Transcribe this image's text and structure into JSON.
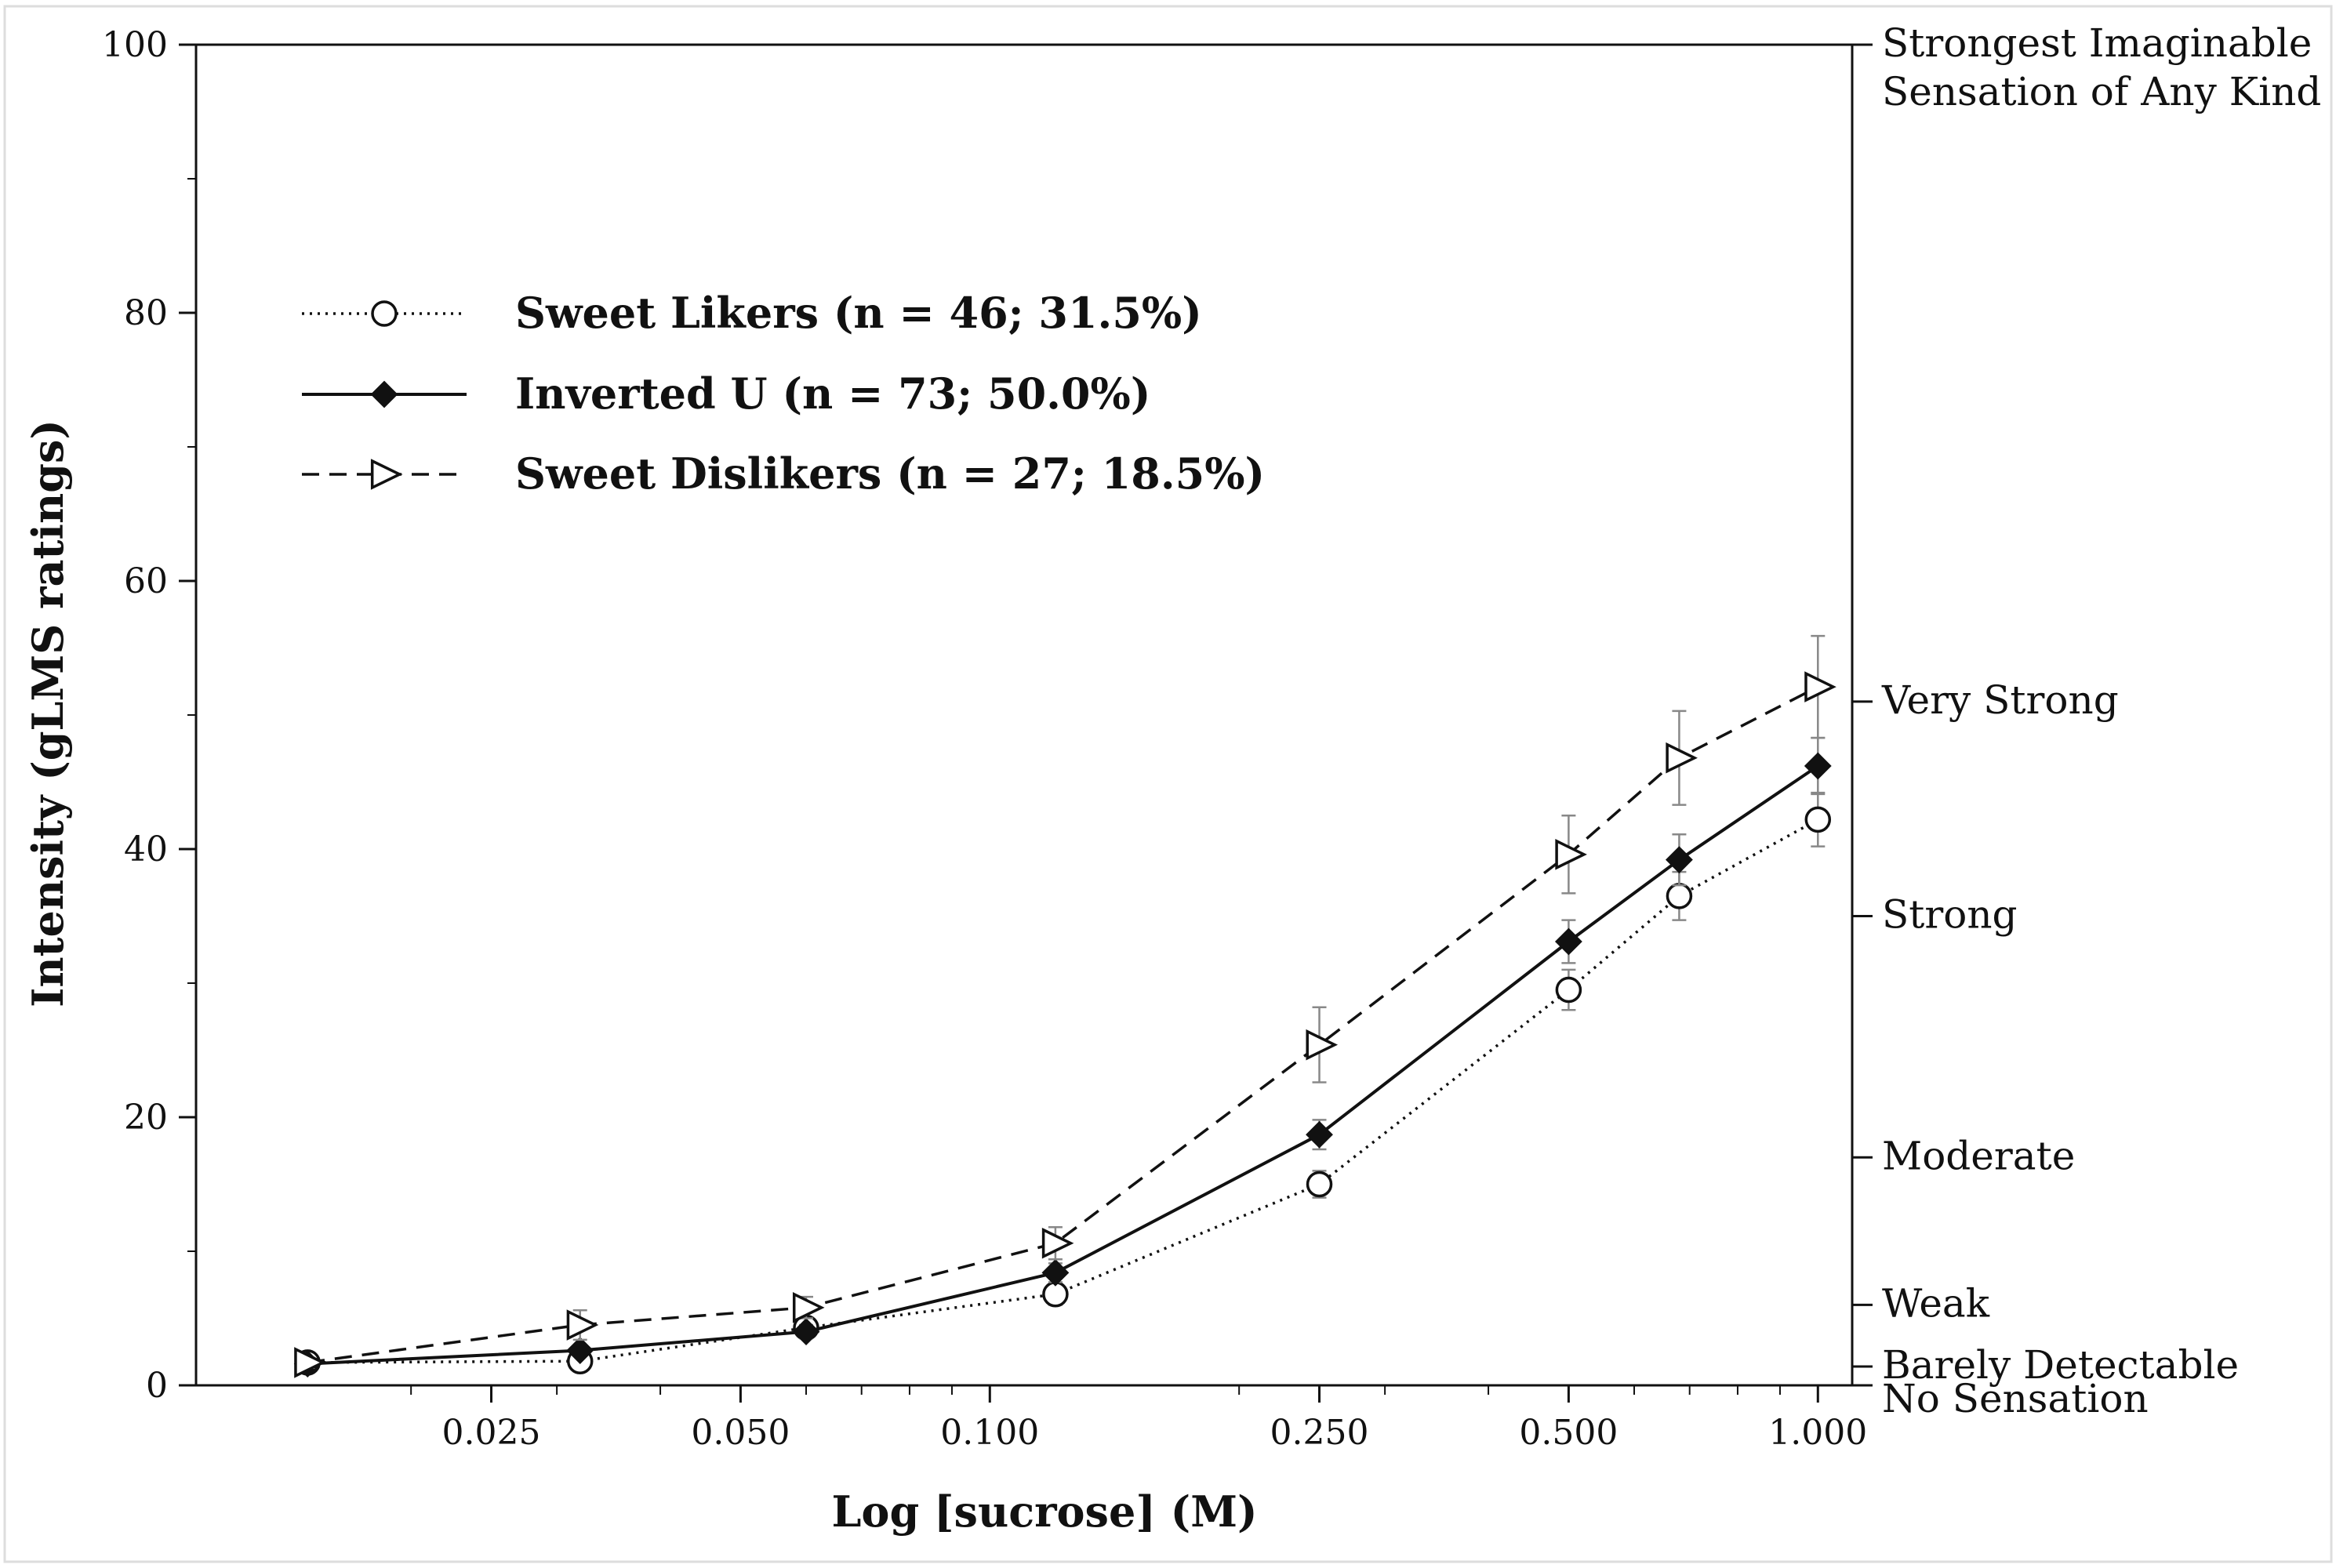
{
  "chart_data": {
    "type": "line",
    "xscale": "log",
    "xlabel": "Log [sucrose] (M)",
    "ylabel": "Intensity (gLMS ratings)",
    "ylim": [
      0,
      100
    ],
    "yticks": [
      0,
      20,
      40,
      60,
      80,
      100
    ],
    "xlim": [
      0.011,
      1.1
    ],
    "xticks": [
      {
        "value": 0.025,
        "label": "0.025"
      },
      {
        "value": 0.05,
        "label": "0.050"
      },
      {
        "value": 0.1,
        "label": "0.100"
      },
      {
        "value": 0.25,
        "label": "0.250"
      },
      {
        "value": 0.5,
        "label": "0.500"
      },
      {
        "value": 1.0,
        "label": "1.000"
      }
    ],
    "x": [
      0.015,
      0.032,
      0.06,
      0.12,
      0.25,
      0.5,
      0.68,
      1.0
    ],
    "series": [
      {
        "name": "Sweet Likers (n = 46; 31.5%)",
        "marker": "circle-open",
        "line": "dotted",
        "values": [
          1.7,
          1.8,
          4.3,
          6.8,
          15.0,
          29.5,
          36.5,
          42.2
        ],
        "errors": [
          0.3,
          0.4,
          0.5,
          0.8,
          1.0,
          1.5,
          1.8,
          2.0
        ]
      },
      {
        "name": "Inverted U (n = 73; 50.0%)",
        "marker": "diamond-filled",
        "line": "solid",
        "values": [
          1.6,
          2.6,
          4.0,
          8.4,
          18.7,
          33.1,
          39.2,
          46.2
        ],
        "errors": [
          0.3,
          0.4,
          0.5,
          0.7,
          1.1,
          1.6,
          1.9,
          2.1
        ]
      },
      {
        "name": "Sweet Dislikers (n = 27; 18.5%)",
        "marker": "triangle-right-open",
        "line": "dashed",
        "values": [
          1.7,
          4.5,
          5.8,
          10.6,
          25.4,
          39.6,
          46.8,
          52.1
        ],
        "errors": [
          0.4,
          1.1,
          0.8,
          1.2,
          2.8,
          2.9,
          3.5,
          3.8
        ]
      }
    ],
    "right_axis_labels": [
      {
        "value": 100,
        "lines": [
          "Strongest Imaginable",
          "Sensation of Any Kind"
        ]
      },
      {
        "value": 51,
        "lines": [
          "Very Strong"
        ]
      },
      {
        "value": 35,
        "lines": [
          "Strong"
        ]
      },
      {
        "value": 17,
        "lines": [
          "Moderate"
        ]
      },
      {
        "value": 6,
        "lines": [
          "Weak"
        ]
      },
      {
        "value": 1.4,
        "lines": [
          "Barely Detectable"
        ]
      },
      {
        "value": 0,
        "lines": [
          "No Sensation"
        ]
      }
    ],
    "legend": {
      "placement": "top-left"
    }
  },
  "colors": {
    "ink": "#111111",
    "error_bar": "#888888"
  }
}
